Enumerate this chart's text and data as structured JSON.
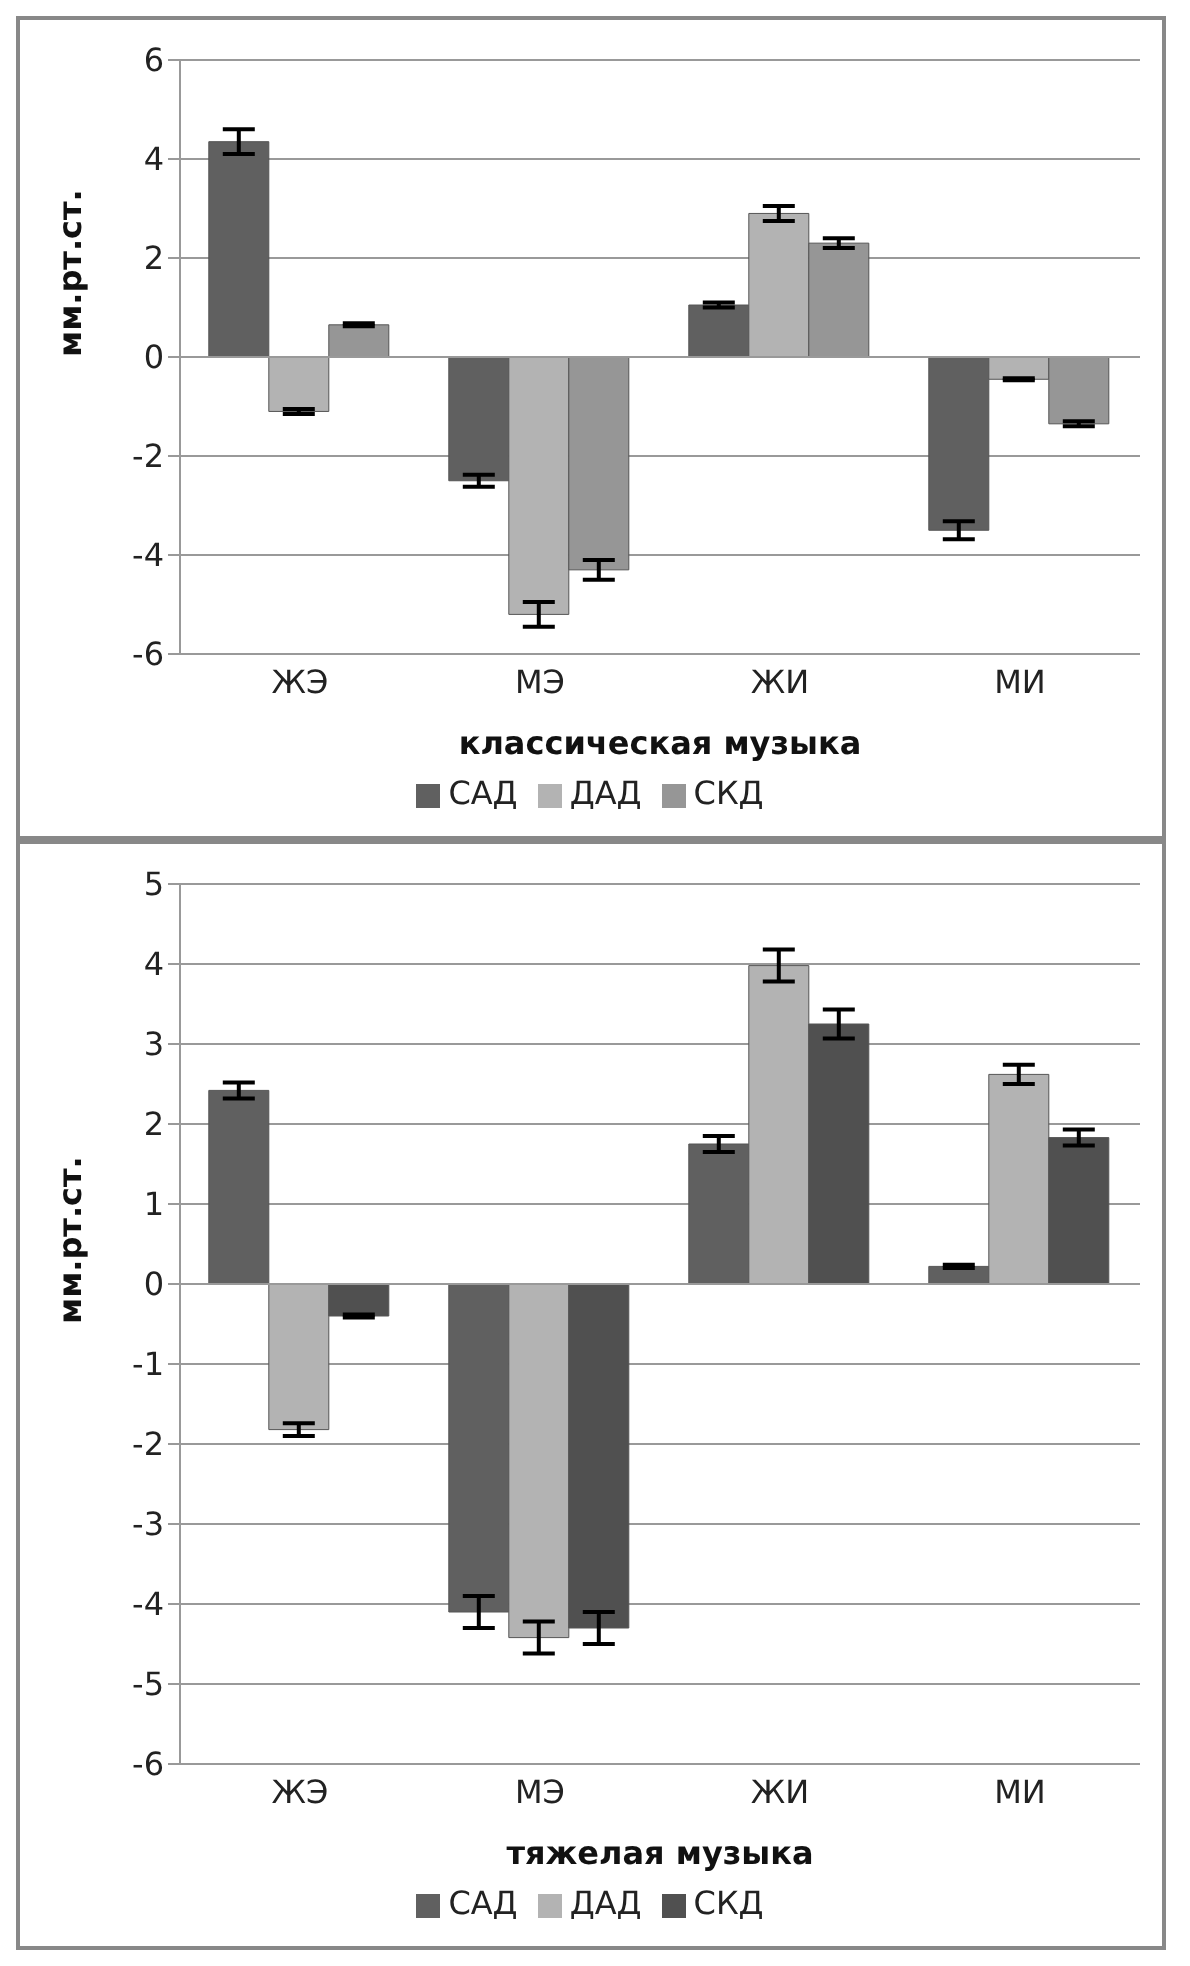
{
  "chart_data": [
    {
      "type": "bar",
      "xlabel": "классическая музыка",
      "ylabel": "мм.рт.ст.",
      "categories": [
        "ЖЭ",
        "МЭ",
        "ЖИ",
        "МИ"
      ],
      "series": [
        {
          "name": "САД",
          "color": "#606060",
          "values": [
            4.35,
            -2.5,
            1.05,
            -3.5
          ],
          "errors": [
            0.25,
            0.12,
            0.05,
            0.18
          ]
        },
        {
          "name": "ДАД",
          "color": "#b3b3b3",
          "values": [
            -1.1,
            -5.2,
            2.9,
            -0.45
          ],
          "errors": [
            0.05,
            0.25,
            0.15,
            0.02
          ]
        },
        {
          "name": "СКД",
          "color": "#969696",
          "values": [
            0.65,
            -4.3,
            2.3,
            -1.35
          ],
          "errors": [
            0.03,
            0.2,
            0.1,
            0.05
          ]
        }
      ],
      "ylim": [
        -6,
        6
      ],
      "yticks": [
        -6,
        -4,
        -2,
        0,
        2,
        4,
        6
      ],
      "grid": "y",
      "legend": "bottom"
    },
    {
      "type": "bar",
      "xlabel": "тяжелая музыка",
      "ylabel": "мм.рт.ст.",
      "categories": [
        "ЖЭ",
        "МЭ",
        "ЖИ",
        "МИ"
      ],
      "series": [
        {
          "name": "САД",
          "color": "#606060",
          "values": [
            2.42,
            -4.1,
            1.75,
            0.22
          ],
          "errors": [
            0.1,
            0.2,
            0.1,
            0.02
          ]
        },
        {
          "name": "ДАД",
          "color": "#b3b3b3",
          "values": [
            -1.82,
            -4.42,
            3.98,
            2.62
          ],
          "errors": [
            0.08,
            0.2,
            0.2,
            0.12
          ]
        },
        {
          "name": "СКД",
          "color": "#505050",
          "values": [
            -0.4,
            -4.3,
            3.25,
            1.83
          ],
          "errors": [
            0.02,
            0.2,
            0.18,
            0.1
          ]
        }
      ],
      "ylim": [
        -6,
        5
      ],
      "yticks": [
        -6,
        -5,
        -4,
        -3,
        -2,
        -1,
        0,
        1,
        2,
        3,
        4,
        5
      ],
      "grid": "y",
      "legend": "bottom"
    }
  ]
}
